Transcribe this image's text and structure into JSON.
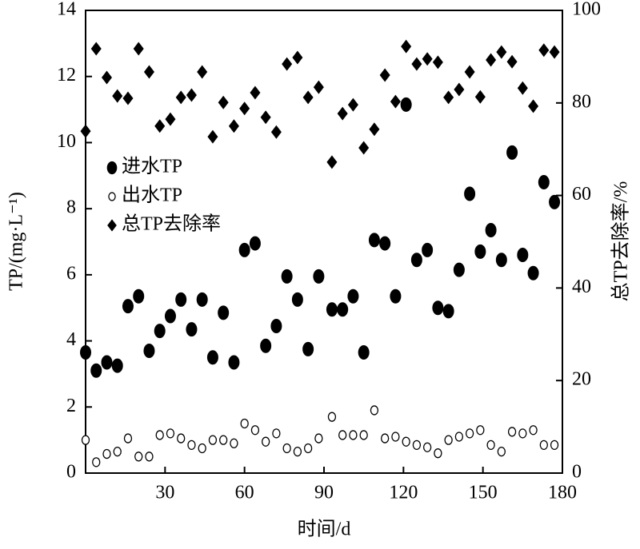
{
  "chart_data": {
    "type": "scatter",
    "x_label": "时间/d",
    "y_label": "TP/(mg·L⁻¹)",
    "y2_label": "总TP去除率/%",
    "x": [
      0,
      4,
      8,
      12,
      16,
      20,
      24,
      28,
      32,
      36,
      40,
      44,
      48,
      52,
      56,
      60,
      64,
      68,
      72,
      76,
      80,
      84,
      88,
      93,
      97,
      101,
      105,
      109,
      113,
      117,
      121,
      125,
      129,
      133,
      137,
      141,
      145,
      149,
      153,
      157,
      161,
      165,
      169,
      173,
      177
    ],
    "series": [
      {
        "name": "进水TP",
        "color": "#000000",
        "marker": "ellipse",
        "values": [
          3.65,
          3.1,
          3.35,
          3.25,
          5.05,
          5.35,
          3.7,
          4.3,
          4.75,
          5.25,
          4.35,
          5.25,
          3.5,
          4.85,
          3.35,
          6.75,
          6.95,
          3.85,
          4.45,
          5.95,
          5.25,
          3.75,
          5.95,
          4.95,
          4.95,
          5.35,
          3.65,
          7.05,
          6.95,
          5.35,
          11.15,
          6.45,
          6.75,
          5.0,
          4.9,
          6.15,
          8.45,
          6.7,
          7.35,
          6.45,
          9.7,
          6.6,
          6.05,
          8.8,
          8.2
        ]
      },
      {
        "name": "出水TP",
        "color": "#000000",
        "marker": "open-ellipse",
        "values": [
          1.0,
          0.33,
          0.58,
          0.65,
          1.05,
          0.5,
          0.5,
          1.15,
          1.2,
          1.05,
          0.85,
          0.75,
          1.0,
          1.0,
          0.9,
          1.5,
          1.3,
          0.95,
          1.2,
          0.75,
          0.65,
          0.75,
          1.05,
          1.7,
          1.15,
          1.15,
          1.15,
          1.9,
          1.05,
          1.1,
          0.95,
          0.85,
          0.78,
          0.6,
          1.0,
          1.1,
          1.2,
          1.3,
          0.85,
          0.65,
          1.25,
          1.2,
          1.3,
          0.85,
          0.85
        ]
      },
      {
        "name": "总TP去除率",
        "color": "#000000",
        "marker": "diamond",
        "axis": "y2",
        "values": [
          73.9,
          91.7,
          85.5,
          81.5,
          81.0,
          91.7,
          86.7,
          75.0,
          76.5,
          81.2,
          81.7,
          86.7,
          72.7,
          80.1,
          75.0,
          78.8,
          82.2,
          76.9,
          73.7,
          88.4,
          89.8,
          81.2,
          83.4,
          67.2,
          77.7,
          79.6,
          70.3,
          74.3,
          86.0,
          80.3,
          92.2,
          88.4,
          89.5,
          88.8,
          81.2,
          82.9,
          86.7,
          81.3,
          89.3,
          91.0,
          88.9,
          83.2,
          79.3,
          91.4,
          91.0
        ]
      }
    ],
    "xlim": [
      0,
      180
    ],
    "xticks": [
      30,
      60,
      90,
      120,
      150,
      180
    ],
    "ylim": [
      0,
      14
    ],
    "yticks": [
      0,
      2,
      4,
      6,
      8,
      10,
      12,
      14
    ],
    "y2lim": [
      0,
      100
    ],
    "y2ticks": [
      0,
      20,
      40,
      60,
      80,
      100
    ]
  }
}
